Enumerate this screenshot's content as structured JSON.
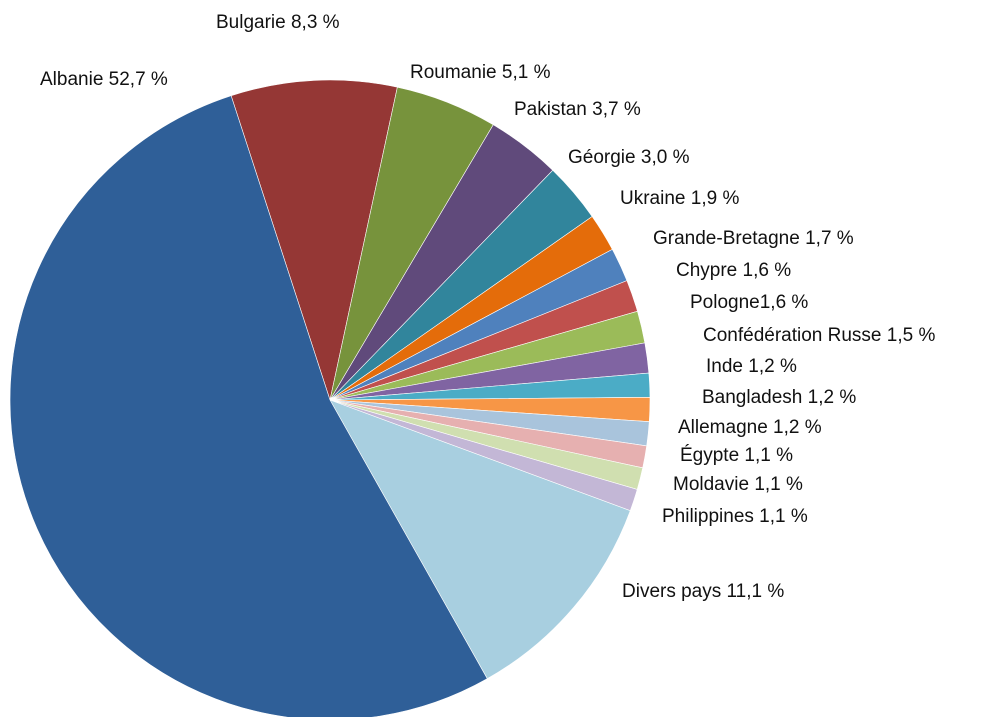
{
  "chart_data": {
    "type": "pie",
    "title": "",
    "start_angle_deg": -18,
    "direction": "clockwise",
    "slices": [
      {
        "name": "Bulgarie",
        "value": 8.3,
        "label": "Bulgarie 8,3 %",
        "color": "#953735"
      },
      {
        "name": "Roumanie",
        "value": 5.1,
        "label": "Roumanie 5,1 %",
        "color": "#77933c"
      },
      {
        "name": "Pakistan",
        "value": 3.7,
        "label": "Pakistan 3,7 %",
        "color": "#604a7b"
      },
      {
        "name": "Géorgie",
        "value": 3.0,
        "label": "Géorgie 3,0 %",
        "color": "#31859c"
      },
      {
        "name": "Ukraine",
        "value": 1.9,
        "label": "Ukraine 1,9 %",
        "color": "#e46c0a"
      },
      {
        "name": "Grande-Bretagne",
        "value": 1.7,
        "label": "Grande-Bretagne 1,7 %",
        "color": "#4f81bd"
      },
      {
        "name": "Chypre",
        "value": 1.6,
        "label": "Chypre 1,6 %",
        "color": "#c0504d"
      },
      {
        "name": "Pologne",
        "value": 1.6,
        "label": "Pologne1,6 %",
        "color": "#9bbb59"
      },
      {
        "name": "Confédération Russe",
        "value": 1.5,
        "label": "Confédération Russe 1,5 %",
        "color": "#8064a2"
      },
      {
        "name": "Inde",
        "value": 1.2,
        "label": "Inde 1,2 %",
        "color": "#4bacc6"
      },
      {
        "name": "Bangladesh",
        "value": 1.2,
        "label": "Bangladesh 1,2 %",
        "color": "#f79646"
      },
      {
        "name": "Allemagne",
        "value": 1.2,
        "label": "Allemagne 1,2 %",
        "color": "#a9c4dc"
      },
      {
        "name": "Égypte",
        "value": 1.1,
        "label": "Égypte 1,1 %",
        "color": "#e6b0b0"
      },
      {
        "name": "Moldavie",
        "value": 1.1,
        "label": "Moldavie 1,1 %",
        "color": "#d0dfb0"
      },
      {
        "name": "Philippines",
        "value": 1.1,
        "label": "Philippines 1,1 %",
        "color": "#c3b7d6"
      },
      {
        "name": "Divers pays",
        "value": 11.1,
        "label": "Divers pays 11,1 %",
        "color": "#a8cfe0"
      },
      {
        "name": "Albanie",
        "value": 52.7,
        "label": "Albanie 52,7 %",
        "color": "#2f5f98"
      }
    ]
  }
}
